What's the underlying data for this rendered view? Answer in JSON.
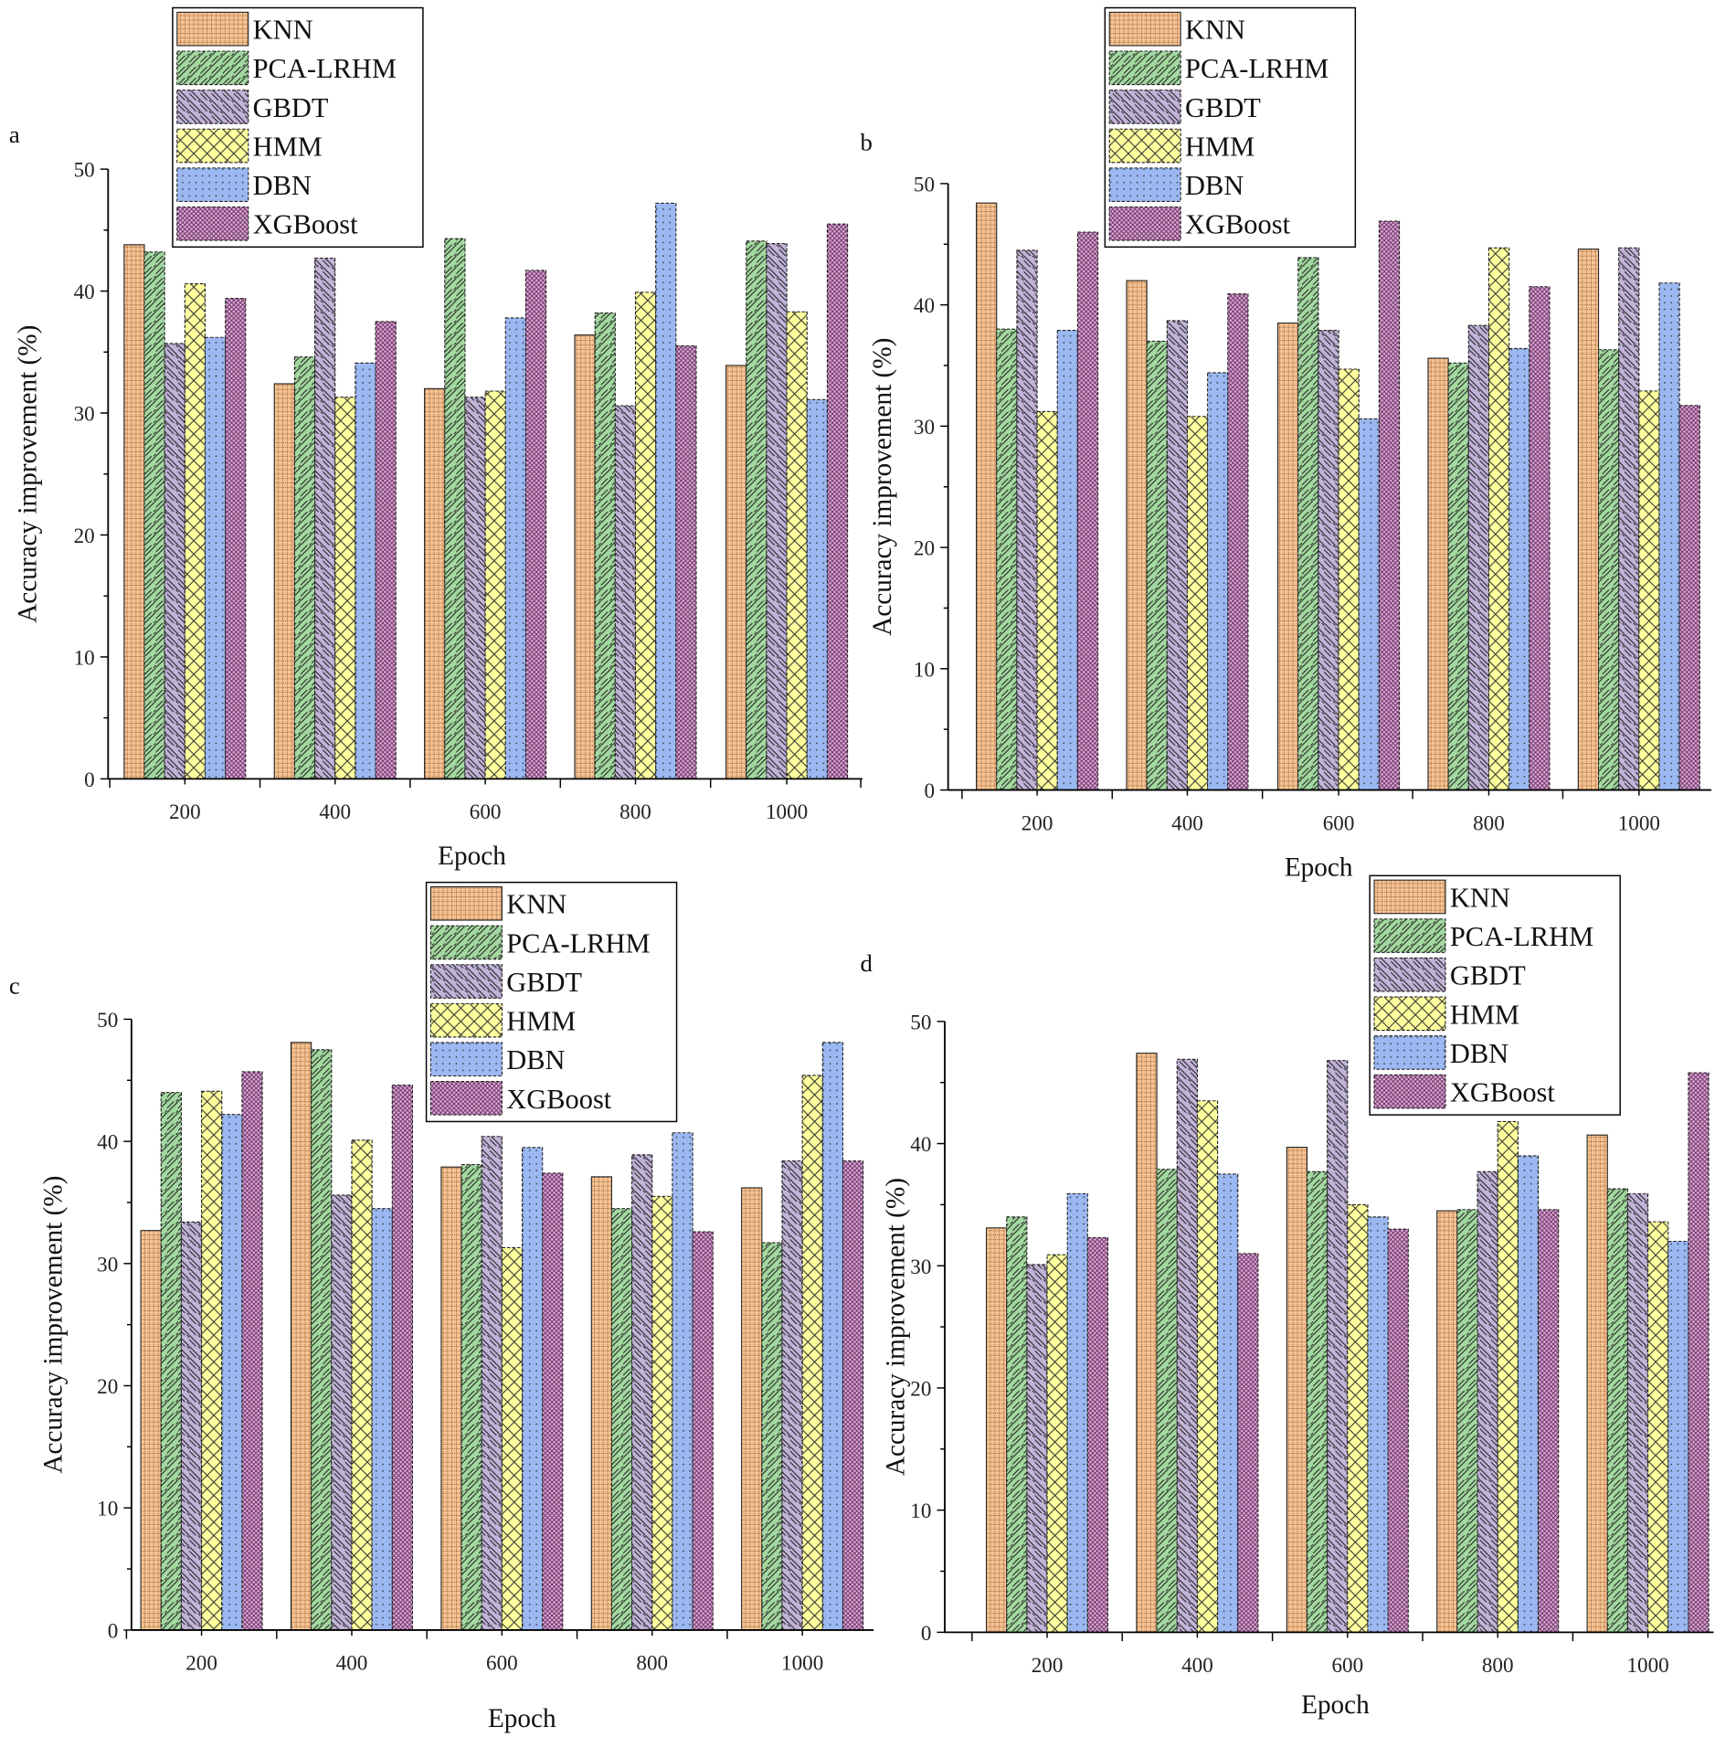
{
  "series_names": [
    "KNN",
    "PCA-LRHM",
    "GBDT",
    "HMM",
    "DBN",
    "XGBoost"
  ],
  "colors": {
    "KNN": "#f8c393",
    "PCA-LRHM": "#a3d9a0",
    "GBDT": "#c2b3d8",
    "HMM": "#ffff9e",
    "DBN": "#9bb8f2",
    "XGBoost": "#e7a3dc"
  },
  "chart_data": [
    {
      "panel": "a",
      "type": "bar",
      "xlabel": "Epoch",
      "ylabel": "Accuracy improvement (%)",
      "ylim": [
        0,
        50
      ],
      "yticks": [
        0,
        10,
        20,
        30,
        40,
        50
      ],
      "categories": [
        "200",
        "400",
        "600",
        "800",
        "1000"
      ],
      "legend": "top-left",
      "series": [
        {
          "name": "KNN",
          "values": [
            43.8,
            32.4,
            32.0,
            36.4,
            33.9
          ]
        },
        {
          "name": "PCA-LRHM",
          "values": [
            43.2,
            34.6,
            44.3,
            38.2,
            44.1
          ]
        },
        {
          "name": "GBDT",
          "values": [
            35.7,
            42.7,
            31.3,
            30.6,
            43.9
          ]
        },
        {
          "name": "HMM",
          "values": [
            40.6,
            31.3,
            31.8,
            39.9,
            38.3
          ]
        },
        {
          "name": "DBN",
          "values": [
            36.2,
            34.1,
            37.8,
            47.2,
            31.1
          ]
        },
        {
          "name": "XGBoost",
          "values": [
            39.4,
            37.5,
            41.7,
            35.5,
            45.5
          ]
        }
      ]
    },
    {
      "panel": "b",
      "type": "bar",
      "xlabel": "Epoch",
      "ylabel": "Accuracy improvement (%)",
      "ylim": [
        0,
        50
      ],
      "yticks": [
        0,
        10,
        20,
        30,
        40,
        50
      ],
      "categories": [
        "200",
        "400",
        "600",
        "800",
        "1000"
      ],
      "legend": "top-left",
      "series": [
        {
          "name": "KNN",
          "values": [
            48.4,
            42.0,
            38.5,
            35.6,
            44.6
          ]
        },
        {
          "name": "PCA-LRHM",
          "values": [
            38.0,
            37.0,
            43.9,
            35.2,
            36.3
          ]
        },
        {
          "name": "GBDT",
          "values": [
            44.5,
            38.7,
            37.9,
            38.3,
            44.7
          ]
        },
        {
          "name": "HMM",
          "values": [
            31.2,
            30.8,
            34.7,
            44.7,
            32.9
          ]
        },
        {
          "name": "DBN",
          "values": [
            37.9,
            34.4,
            30.6,
            36.4,
            41.8
          ]
        },
        {
          "name": "XGBoost",
          "values": [
            46.0,
            40.9,
            46.9,
            41.5,
            31.7
          ]
        }
      ]
    },
    {
      "panel": "c",
      "type": "bar",
      "xlabel": "Epoch",
      "ylabel": "Accuracy improvement (%)",
      "ylim": [
        0,
        50
      ],
      "yticks": [
        0,
        10,
        20,
        30,
        40,
        50
      ],
      "categories": [
        "200",
        "400",
        "600",
        "800",
        "1000"
      ],
      "legend": "top-center",
      "series": [
        {
          "name": "KNN",
          "values": [
            32.7,
            48.1,
            37.9,
            37.1,
            36.2
          ]
        },
        {
          "name": "PCA-LRHM",
          "values": [
            44.0,
            47.5,
            38.1,
            34.5,
            31.7
          ]
        },
        {
          "name": "GBDT",
          "values": [
            33.4,
            35.6,
            40.4,
            38.9,
            38.4
          ]
        },
        {
          "name": "HMM",
          "values": [
            44.1,
            40.1,
            31.3,
            35.5,
            45.4
          ]
        },
        {
          "name": "DBN",
          "values": [
            42.2,
            34.5,
            39.5,
            40.7,
            48.1
          ]
        },
        {
          "name": "XGBoost",
          "values": [
            45.7,
            44.6,
            37.4,
            32.6,
            38.4
          ]
        }
      ]
    },
    {
      "panel": "d",
      "type": "bar",
      "xlabel": "Epoch",
      "ylabel": "Accuracy improvement (%)",
      "ylim": [
        0,
        50
      ],
      "yticks": [
        0,
        10,
        20,
        30,
        40,
        50
      ],
      "categories": [
        "200",
        "400",
        "600",
        "800",
        "1000"
      ],
      "legend": "top-right",
      "series": [
        {
          "name": "KNN",
          "values": [
            33.1,
            47.4,
            39.7,
            34.5,
            40.7
          ]
        },
        {
          "name": "PCA-LRHM",
          "values": [
            34.0,
            37.9,
            37.7,
            34.6,
            36.3
          ]
        },
        {
          "name": "GBDT",
          "values": [
            30.1,
            46.9,
            46.8,
            37.7,
            35.9
          ]
        },
        {
          "name": "HMM",
          "values": [
            30.9,
            43.5,
            35.0,
            41.8,
            33.6
          ]
        },
        {
          "name": "DBN",
          "values": [
            35.9,
            37.5,
            34.0,
            39.0,
            32.0
          ]
        },
        {
          "name": "XGBoost",
          "values": [
            32.3,
            31.0,
            33.0,
            34.6,
            45.8
          ]
        }
      ]
    }
  ]
}
